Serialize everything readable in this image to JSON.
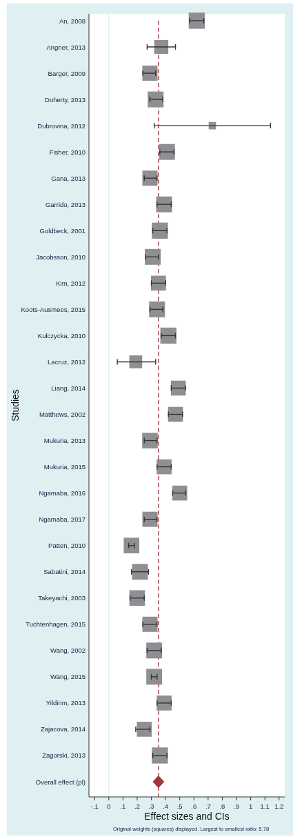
{
  "chart_data": {
    "type": "bubble",
    "orientation": "horizontal",
    "xlabel": "Effect sizes and CIs",
    "ylabel": "Studies",
    "annotations": [
      "Original weights (squares) displayed. Largest to smallest ratio: 5.78"
    ],
    "categories": [
      "An, 2008",
      "Angner, 2013",
      "Barger, 2009",
      "Doherty, 2013",
      "Dubrovina, 2012",
      "Fisher, 2010",
      "Gana, 2013",
      "Garrido, 2013",
      "Goldbeck, 2001",
      "Jacobsson, 2010",
      "Kim, 2012",
      "Koots-Ausmees, 2015",
      "Kulczycka, 2010",
      "Lacruz, 2012",
      "Liang, 2014",
      "Matthews, 2002",
      "Mukuria, 2013",
      "Mukuria, 2015",
      "Ngamaba, 2016",
      "Ngamaba, 2017",
      "Patten, 2010",
      "Sabatini, 2014",
      "Takeyachi, 2003",
      "Tuchtenhagen, 2015",
      "Wang, 2002",
      "Wang, 2015",
      "Yildirim, 2013",
      "Zajacova, 2014",
      "Zagorski, 2013",
      "Overall effect (pl)"
    ],
    "series": [
      {
        "marker": "square",
        "color": "#8e8e93",
        "values": [
          0.62,
          0.37,
          0.29,
          0.33,
          0.73,
          0.41,
          0.29,
          0.39,
          0.36,
          0.31,
          0.35,
          0.34,
          0.42,
          0.19,
          0.49,
          0.47,
          0.29,
          0.39,
          0.5,
          0.29,
          0.16,
          0.22,
          0.2,
          0.29,
          0.32,
          0.32,
          0.39,
          0.25,
          0.36,
          null
        ],
        "sizes": [
          1,
          0.76,
          0.89,
          0.97,
          0.21,
          0.97,
          0.89,
          0.97,
          1,
          0.97,
          0.86,
          0.97,
          1,
          0.64,
          0.86,
          0.86,
          0.94,
          0.86,
          0.86,
          0.89,
          0.94,
          0.97,
          0.94,
          0.89,
          0.97,
          0.97,
          0.86,
          0.86,
          1,
          null
        ],
        "errors": [
          [
            0.57,
            0.67
          ],
          [
            0.27,
            0.47
          ],
          [
            0.24,
            0.33
          ],
          [
            0.29,
            0.38
          ],
          [
            0.32,
            1.14
          ],
          [
            0.36,
            0.46
          ],
          [
            0.25,
            0.34
          ],
          [
            0.34,
            0.44
          ],
          [
            0.31,
            0.41
          ],
          [
            0.26,
            0.35
          ],
          [
            0.3,
            0.4
          ],
          [
            0.29,
            0.38
          ],
          [
            0.37,
            0.47
          ],
          [
            0.06,
            0.33
          ],
          [
            0.44,
            0.54
          ],
          [
            0.42,
            0.52
          ],
          [
            0.25,
            0.34
          ],
          [
            0.34,
            0.44
          ],
          [
            0.45,
            0.54
          ],
          [
            0.25,
            0.34
          ],
          [
            0.14,
            0.18
          ],
          [
            0.16,
            0.28
          ],
          [
            0.15,
            0.25
          ],
          [
            0.24,
            0.34
          ],
          [
            0.27,
            0.37
          ],
          [
            0.3,
            0.34
          ],
          [
            0.34,
            0.44
          ],
          [
            0.19,
            0.29
          ],
          [
            0.31,
            0.41
          ],
          null
        ]
      },
      {
        "type": "scatter",
        "marker": "diamond",
        "color": "#a3363c",
        "values": [
          null,
          null,
          null,
          null,
          null,
          null,
          null,
          null,
          null,
          null,
          null,
          null,
          null,
          null,
          null,
          null,
          null,
          null,
          null,
          null,
          null,
          null,
          null,
          null,
          null,
          null,
          null,
          null,
          null,
          0.35
        ]
      }
    ],
    "ref_lines": [
      {
        "axis": "x",
        "value": 0,
        "color": "#dceff1",
        "line_style": "solid"
      },
      {
        "axis": "x",
        "value": 0.35,
        "color": "#a3363c",
        "line_style": "dashed"
      }
    ],
    "xlim": [
      -0.14,
      1.24
    ],
    "xticks": [
      {
        "value": -0.1,
        "label": "-.1"
      },
      0,
      {
        "value": 0.1,
        "label": ".1"
      },
      {
        "value": 0.2,
        "label": ".2"
      },
      {
        "value": 0.3,
        "label": ".3"
      },
      {
        "value": 0.4,
        "label": ".4"
      },
      {
        "value": 0.5,
        "label": ".5"
      },
      {
        "value": 0.6,
        "label": ".6"
      },
      {
        "value": 0.7,
        "label": ".7"
      },
      {
        "value": 0.8,
        "label": ".8"
      },
      {
        "value": 0.9,
        "label": ".9"
      },
      1,
      1.1,
      1.2
    ]
  }
}
